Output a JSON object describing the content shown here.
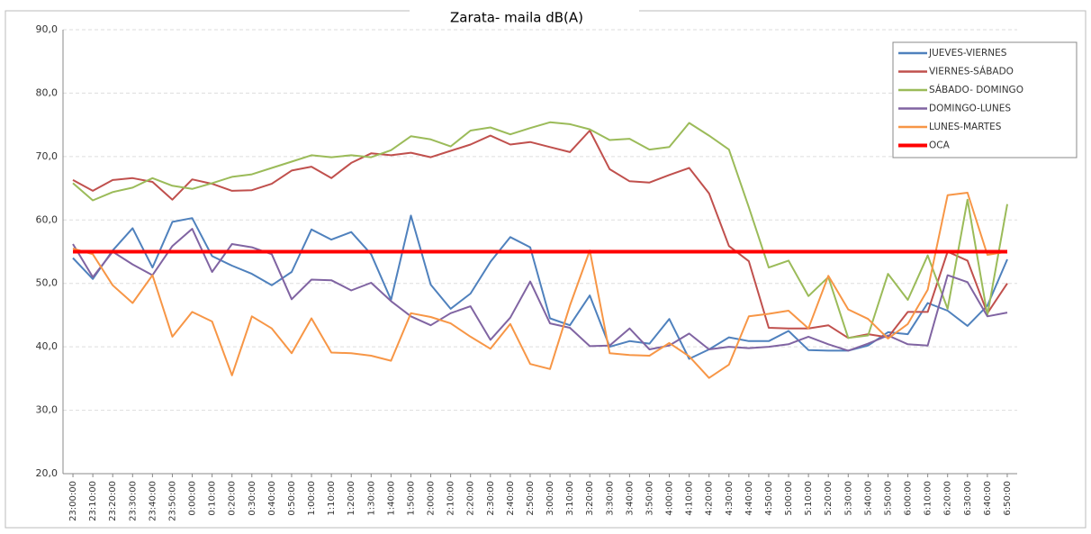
{
  "chart_data": {
    "type": "line",
    "title": "Zarata- maila dB(A)",
    "categories": [
      "23:00:00",
      "23:10:00",
      "23:20:00",
      "23:30:00",
      "23:40:00",
      "23:50:00",
      "0:00:00",
      "0:10:00",
      "0:20:00",
      "0:30:00",
      "0:40:00",
      "0:50:00",
      "1:00:00",
      "1:10:00",
      "1:20:00",
      "1:30:00",
      "1:40:00",
      "1:50:00",
      "2:00:00",
      "2:10:00",
      "2:20:00",
      "2:30:00",
      "2:40:00",
      "2:50:00",
      "3:00:00",
      "3:10:00",
      "3:20:00",
      "3:30:00",
      "3:40:00",
      "3:50:00",
      "4:00:00",
      "4:10:00",
      "4:20:00",
      "4:30:00",
      "4:40:00",
      "4:50:00",
      "5:00:00",
      "5:10:00",
      "5:20:00",
      "5:30:00",
      "5:40:00",
      "5:50:00",
      "6:00:00",
      "6:10:00",
      "6:20:00",
      "6:30:00",
      "6:40:00",
      "6:50:00"
    ],
    "series": [
      {
        "name": "JUEVES-VIERNES",
        "color": "#4f81bd",
        "values": [
          54,
          50.7,
          55.2,
          58.7,
          52.5,
          59.7,
          60.3,
          54.3,
          52.8,
          51.5,
          49.7,
          51.8,
          58.5,
          56.9,
          58.1,
          54.6,
          47.4,
          60.7,
          49.8,
          46,
          48.4,
          53.4,
          57.3,
          55.7,
          44.5,
          43.4,
          48.1,
          40,
          40.9,
          40.5,
          44.4,
          38.1,
          39.6,
          41.5,
          40.9,
          40.9,
          42.5,
          39.5,
          39.4,
          39.4,
          40.2,
          42.3,
          42,
          46.9,
          45.7,
          43.3,
          46.5,
          53.8
        ]
      },
      {
        "name": "VIERNES-SÁBADO",
        "color": "#c0504d",
        "values": [
          66.3,
          64.6,
          66.3,
          66.6,
          66,
          63.2,
          66.4,
          65.7,
          64.6,
          64.7,
          65.7,
          67.8,
          68.4,
          66.6,
          69,
          70.5,
          70.2,
          70.6,
          69.9,
          70.9,
          71.9,
          73.3,
          71.9,
          72.3,
          71.5,
          70.7,
          74.1,
          68,
          66.1,
          65.9,
          67.1,
          68.2,
          64.2,
          55.9,
          53.5,
          43,
          42.9,
          42.9,
          43.4,
          41.4,
          42,
          41.5,
          45.5,
          45.5,
          55,
          53.6,
          45.3,
          50
        ]
      },
      {
        "name": "SÁBADO- DOMINGO",
        "color": "#9bbb59",
        "values": [
          65.8,
          63.1,
          64.4,
          65.1,
          66.6,
          65.4,
          64.9,
          65.8,
          66.8,
          67.2,
          68.2,
          69.2,
          70.2,
          69.9,
          70.2,
          69.9,
          71,
          73.2,
          72.7,
          71.6,
          74.1,
          74.6,
          73.5,
          74.5,
          75.4,
          75.1,
          74.3,
          72.6,
          72.8,
          71.1,
          71.5,
          75.3,
          73.3,
          71.1,
          62,
          52.5,
          53.6,
          48,
          51,
          41.4,
          41.8,
          51.5,
          47.4,
          54.4,
          46,
          63.2,
          45,
          62.5
        ]
      },
      {
        "name": "DOMINGO-LUNES",
        "color": "#8064a2",
        "values": [
          56.2,
          51,
          55,
          53,
          51.3,
          55.9,
          58.6,
          51.8,
          56.2,
          55.7,
          54.6,
          47.5,
          50.6,
          50.5,
          48.9,
          50.1,
          47.2,
          44.8,
          43.4,
          45.3,
          46.4,
          41.1,
          44.6,
          50.3,
          43.7,
          43,
          40.1,
          40.2,
          42.9,
          39.6,
          40.2,
          42.1,
          39.6,
          40,
          39.8,
          40,
          40.4,
          41.6,
          40.4,
          39.4,
          40.5,
          41.8,
          40.4,
          40.2,
          51.3,
          50.2,
          44.8,
          45.4
        ]
      },
      {
        "name": "LUNES-MARTES",
        "color": "#f79646",
        "values": [
          55.5,
          54.6,
          49.7,
          46.9,
          51.3,
          41.6,
          45.5,
          44,
          35.5,
          44.8,
          42.9,
          39,
          44.5,
          39.1,
          39,
          38.6,
          37.8,
          45.3,
          44.7,
          43.7,
          41.6,
          39.7,
          43.6,
          37.3,
          36.5,
          46.5,
          55.2,
          39,
          38.7,
          38.6,
          40.6,
          38.5,
          35.1,
          37.2,
          44.8,
          45.2,
          45.7,
          42.9,
          51.2,
          45.9,
          44.4,
          41.3,
          43.6,
          49,
          63.9,
          64.3,
          54.5,
          55
        ]
      },
      {
        "name": "OCA",
        "color": "#ff0000",
        "values": [
          55,
          55,
          55,
          55,
          55,
          55,
          55,
          55,
          55,
          55,
          55,
          55,
          55,
          55,
          55,
          55,
          55,
          55,
          55,
          55,
          55,
          55,
          55,
          55,
          55,
          55,
          55,
          55,
          55,
          55,
          55,
          55,
          55,
          55,
          55,
          55,
          55,
          55,
          55,
          55,
          55,
          55,
          55,
          55,
          55,
          55,
          55,
          55
        ]
      }
    ],
    "ylim": [
      20,
      90
    ],
    "yticks": [
      {
        "value": 20,
        "label": "20,0"
      },
      {
        "value": 30,
        "label": "30,0"
      },
      {
        "value": 40,
        "label": "40,0"
      },
      {
        "value": 50,
        "label": "50,0"
      },
      {
        "value": 60,
        "label": "60,0"
      },
      {
        "value": 70,
        "label": "70,0"
      },
      {
        "value": 80,
        "label": "80,0"
      },
      {
        "value": 90,
        "label": "90,0"
      }
    ],
    "grid": true,
    "legend": "upper right"
  }
}
